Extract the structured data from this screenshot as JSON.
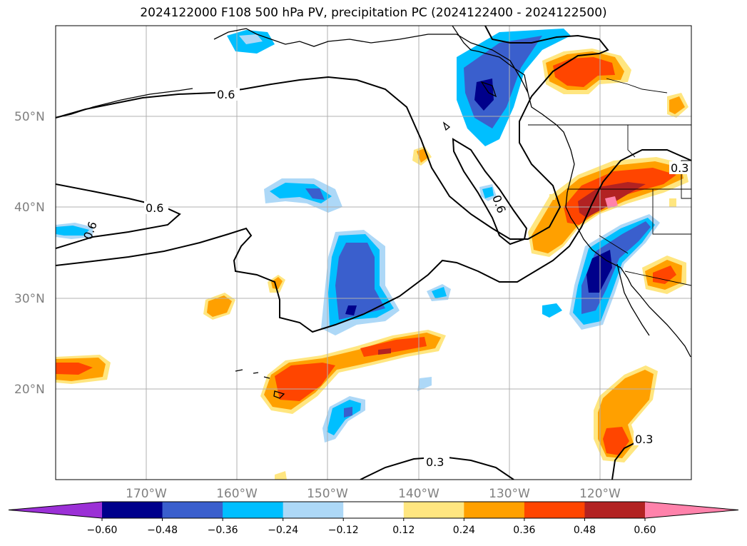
{
  "title": "2024122000 F108 500 hPa PV, precipitation PC (2024122400 - 2024122500)",
  "map": {
    "lat_labels": [
      "50°N",
      "40°N",
      "30°N",
      "20°N"
    ],
    "lon_labels": [
      "170°W",
      "160°W",
      "150°W",
      "140°W",
      "130°W",
      "120°W"
    ],
    "contour_labels": [
      "0.6",
      "0.6",
      "0.6",
      "0.6",
      "0.3",
      "0.3",
      "0.3"
    ]
  },
  "colorbar": {
    "ticks": [
      "−0.60",
      "−0.48",
      "−0.36",
      "−0.24",
      "−0.12",
      "0.12",
      "0.24",
      "0.36",
      "0.48",
      "0.60"
    ],
    "colors": [
      "#9b30d6",
      "#00008b",
      "#3a5fcd",
      "#00bfff",
      "#add8f7",
      "#ffffff",
      "#ffe680",
      "#ffa000",
      "#ff4500",
      "#b22222",
      "#ff82ab"
    ],
    "extend": "both"
  },
  "chart_data": {
    "type": "heatmap",
    "title": "2024122000 F108 500 hPa PV, precipitation PC (2024122400 - 2024122500)",
    "xlabel": "",
    "ylabel": "",
    "x_range_deg_lon": [
      -180,
      -110
    ],
    "y_range_deg_lat": [
      10,
      60
    ],
    "grid": true,
    "field": "precipitation PC (shaded)",
    "contour_field": "500 hPa PV",
    "contour_levels": [
      0.3,
      0.6
    ],
    "levels": [
      -0.6,
      -0.48,
      -0.36,
      -0.24,
      -0.12,
      0.12,
      0.24,
      0.36,
      0.48,
      0.6
    ]
  }
}
